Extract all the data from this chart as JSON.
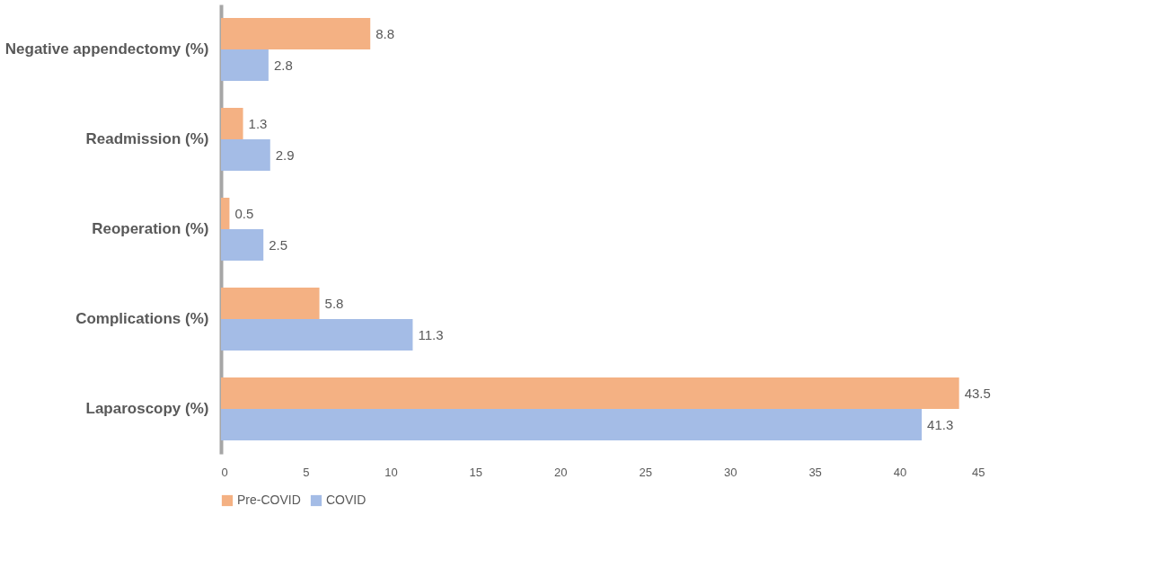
{
  "chart_data": {
    "type": "bar",
    "orientation": "horizontal",
    "categories": [
      "Negative appendectomy (%)",
      "Readmission (%)",
      "Reoperation (%)",
      "Complications (%)",
      "Laparoscopy (%)"
    ],
    "series": [
      {
        "name": "Pre-COVID",
        "color": "#f4b183",
        "values": [
          8.8,
          1.3,
          0.5,
          5.8,
          43.5
        ]
      },
      {
        "name": "COVID",
        "color": "#a4bce6",
        "values": [
          2.8,
          2.9,
          2.5,
          11.3,
          41.3
        ]
      }
    ],
    "xlim": [
      0,
      45
    ],
    "xticks": [
      0,
      5,
      10,
      15,
      20,
      25,
      30,
      35,
      40,
      45
    ],
    "data_labels": true,
    "legend": "bottom",
    "grid": false
  }
}
